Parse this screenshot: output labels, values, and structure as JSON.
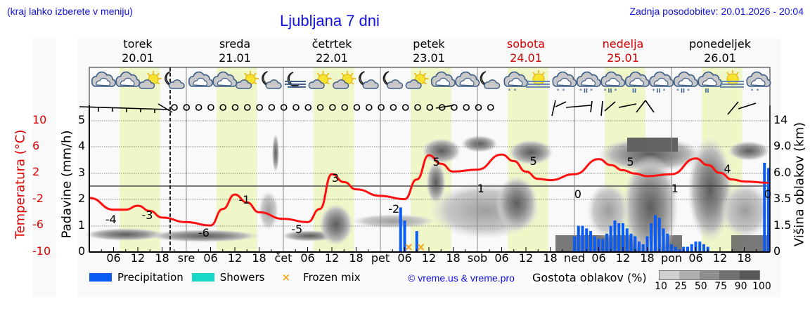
{
  "header": {
    "region_hint": "(kraj lahko izberete v meniju)",
    "title": "Ljubljana 7 dni",
    "last_update": "Zadnja posodobitev: 20.01.2026 - 20:04"
  },
  "days": [
    {
      "name": "torek",
      "date": "20.01",
      "weekend": false
    },
    {
      "name": "sreda",
      "date": "21.01",
      "weekend": false
    },
    {
      "name": "četrtek",
      "date": "22.01",
      "weekend": false
    },
    {
      "name": "petek",
      "date": "23.01",
      "weekend": false
    },
    {
      "name": "sobota",
      "date": "24.01",
      "weekend": true
    },
    {
      "name": "nedelja",
      "date": "25.01",
      "weekend": true
    },
    {
      "name": "ponedeljek",
      "date": "26.01",
      "weekend": false
    }
  ],
  "axes": {
    "left_temp_label": "Temperatura (°C)",
    "left_temp_ticks": [
      "10",
      "6",
      "2",
      "-2",
      "-6",
      "-10"
    ],
    "left_precip_label": "Padavine (mm/h)",
    "left_precip_ticks": [
      "5",
      "4",
      "3",
      "2",
      "1",
      "0"
    ],
    "right_label": "Višina oblakov (km)",
    "right_ticks": [
      "14",
      "9.0",
      "6.0",
      "3.5",
      "1.5",
      "0"
    ],
    "x_ticks": [
      "06",
      "12",
      "18",
      "sre",
      "06",
      "12",
      "18",
      "čet",
      "06",
      "12",
      "18",
      "pet",
      "06",
      "12",
      "18",
      "sob",
      "06",
      "12",
      "18",
      "ned",
      "06",
      "12",
      "18",
      "pon",
      "06",
      "12",
      "18"
    ]
  },
  "legend": {
    "precipitation": "Precipitation",
    "showers": "Showers",
    "frozen_mix": "Frozen mix",
    "copyright": "© vreme.us & vreme.pro",
    "cloud_density_label": "Gostota oblakov (%)",
    "cloud_density_ticks": [
      "10",
      "25",
      "50",
      "75",
      "90",
      "100"
    ]
  },
  "colors": {
    "precipitation": "#0a5cf5",
    "showers": "#17d9c6",
    "frozen_mix": "#f5a623",
    "temperature": "#ff0000",
    "daylight": "#eff7c8",
    "link": "#1010e0",
    "weekend": "#d00000"
  },
  "chart_data": {
    "type": "line",
    "title": "Ljubljana 7 dni",
    "xlabel": "",
    "ylabel": "Temperatura (°C) / Padavine (mm/h)",
    "y2label": "Višina oblakov (km)",
    "temp_ylim": [
      -10,
      10
    ],
    "precip_ylim": [
      0,
      5
    ],
    "grid": true,
    "series": [
      {
        "name": "Temperatura",
        "unit": "°C",
        "hours": [
          0,
          6,
          9,
          12,
          15,
          18,
          24,
          30,
          33,
          36,
          39,
          42,
          48,
          54,
          57,
          60,
          63,
          66,
          72,
          78,
          81,
          84,
          87,
          90,
          96,
          102,
          105,
          108,
          111,
          114,
          120,
          126,
          129,
          132,
          135,
          138,
          144,
          150,
          153,
          156,
          159,
          162,
          168
        ],
        "values": [
          -1.8,
          -3.6,
          -3.6,
          -3.0,
          -3.8,
          -4.8,
          -5.5,
          -6.0,
          -3.5,
          -1.3,
          -2.5,
          -4.0,
          -5.0,
          -5.5,
          -3.5,
          1.8,
          0.6,
          -0.5,
          -1.5,
          -2.0,
          1.0,
          4.7,
          3.4,
          2.2,
          2.5,
          4.8,
          3.8,
          2.2,
          1.1,
          0.9,
          1.8,
          4.1,
          3.2,
          2.4,
          1.9,
          1.5,
          1.8,
          4.2,
          3.2,
          2.0,
          1.0,
          0.7,
          0.5
        ]
      },
      {
        "name": "Precipitation",
        "unit": "mm/h",
        "hours": [
          77,
          78,
          81,
          120,
          121,
          122,
          123,
          124,
          125,
          126,
          127,
          128,
          129,
          130,
          131,
          132,
          133,
          134,
          135,
          136,
          137,
          138,
          139,
          140,
          141,
          142,
          143,
          144,
          145,
          146,
          147,
          148,
          149,
          150,
          151,
          152,
          153,
          167,
          168
        ],
        "values": [
          1.7,
          1.2,
          0.8,
          0.6,
          1.0,
          1.0,
          0.9,
          0.8,
          0.6,
          0.5,
          0.5,
          0.7,
          1.0,
          1.2,
          1.1,
          1.1,
          0.9,
          0.7,
          0.6,
          0.4,
          0.3,
          0.6,
          1.1,
          1.4,
          1.3,
          0.9,
          0.7,
          0.3,
          0.2,
          0.1,
          0.2,
          0.2,
          0.3,
          0.4,
          0.4,
          0.3,
          0.2,
          3.4,
          3.2
        ]
      }
    ],
    "temp_labels": [
      {
        "hour": 5,
        "value": "-4"
      },
      {
        "hour": 14,
        "value": "-3"
      },
      {
        "hour": 28,
        "value": "-6"
      },
      {
        "hour": 38,
        "value": "-1"
      },
      {
        "hour": 51,
        "value": "-5"
      },
      {
        "hour": 61,
        "value": "3"
      },
      {
        "hour": 75,
        "value": "-2"
      },
      {
        "hour": 86,
        "value": "5"
      },
      {
        "hour": 97,
        "value": "1"
      },
      {
        "hour": 110,
        "value": "5"
      },
      {
        "hour": 121,
        "value": "0"
      },
      {
        "hour": 134,
        "value": "5"
      },
      {
        "hour": 145,
        "value": "1"
      },
      {
        "hour": 158,
        "value": "4"
      },
      {
        "hour": 168,
        "value": "0"
      }
    ],
    "frozen_mix_hours": [
      79,
      82
    ],
    "legend": [
      "Precipitation",
      "Showers",
      "Frozen mix"
    ],
    "legend_position": "bottom"
  }
}
